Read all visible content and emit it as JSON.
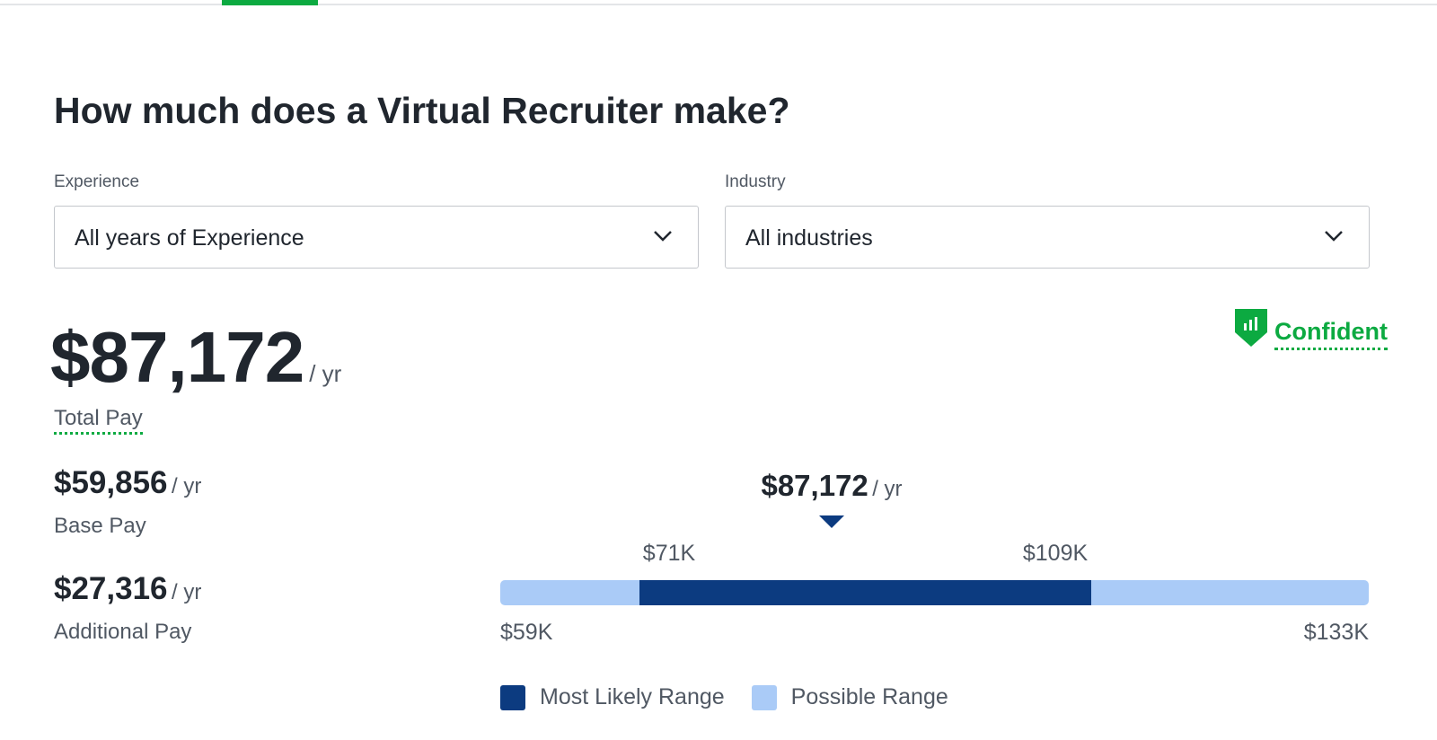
{
  "header": {
    "title": "How much does a Virtual Recruiter make?"
  },
  "filters": [
    {
      "label": "Experience",
      "value": "All years of Experience"
    },
    {
      "label": "Industry",
      "value": "All industries"
    }
  ],
  "confidence": "Confident",
  "total": {
    "amount": "$87,172",
    "unit": "/ yr",
    "label": "Total Pay"
  },
  "breakdown": [
    {
      "amount": "$59,856",
      "unit": "/ yr",
      "label": "Base Pay"
    },
    {
      "amount": "$27,316",
      "unit": "/ yr",
      "label": "Additional Pay"
    }
  ],
  "range": {
    "median": "$87,172",
    "median_unit": "/ yr",
    "likely_low": "$71K",
    "likely_high": "$109K",
    "low": "$59K",
    "high": "$133K",
    "legend": [
      "Most Likely Range",
      "Possible Range"
    ]
  }
}
